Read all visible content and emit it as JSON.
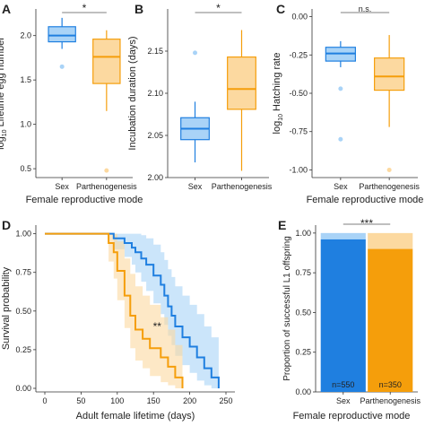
{
  "colors": {
    "sex": "#1f7fe0",
    "sex_fill": "#a9d3f7",
    "parth": "#f59e0b",
    "parth_fill": "#fcd9a0"
  },
  "chart_data": [
    {
      "panel": "A",
      "type": "box",
      "categories": [
        "Sex",
        "Parthenogenesis"
      ],
      "xlabel": "Female reproductive mode",
      "ylabel_prefix": "log",
      "ylabel_sub": "10",
      "ylabel_rest": " Lifetime egg number",
      "ylim": [
        0.4,
        2.3
      ],
      "yticks": [
        0.5,
        1.0,
        1.5,
        2.0
      ],
      "yticklabels": [
        "0.5",
        "1.0",
        "1.5",
        "2.0"
      ],
      "boxes": [
        {
          "min": 1.85,
          "q1": 1.93,
          "median": 2.0,
          "q3": 2.1,
          "max": 2.2,
          "outliers": [
            1.65
          ]
        },
        {
          "min": 1.15,
          "q1": 1.46,
          "median": 1.76,
          "q3": 1.96,
          "max": 2.06,
          "outliers": [
            0.48
          ]
        }
      ],
      "significance": "*"
    },
    {
      "panel": "B",
      "type": "box",
      "categories": [
        "Sex",
        "Parthenogenesis"
      ],
      "xlabel": "",
      "ylabel": "Incubation duration (days)",
      "ylim": [
        2.0,
        2.2
      ],
      "yticks": [
        2.0,
        2.05,
        2.1,
        2.15
      ],
      "yticklabels": [
        "2.00",
        "2.05",
        "2.10",
        "2.15"
      ],
      "boxes": [
        {
          "min": 2.018,
          "q1": 2.045,
          "median": 2.058,
          "q3": 2.071,
          "max": 2.09,
          "outliers": [
            2.148
          ]
        },
        {
          "min": 2.008,
          "q1": 2.081,
          "median": 2.105,
          "q3": 2.143,
          "max": 2.175,
          "outliers": []
        }
      ],
      "significance": "*"
    },
    {
      "panel": "C",
      "type": "box",
      "categories": [
        "Sex",
        "Parthenogenesis"
      ],
      "xlabel": "Female reproductive mode",
      "ylabel_prefix": "log",
      "ylabel_sub": "10",
      "ylabel_rest": " Hatching rate",
      "ylim": [
        -1.05,
        0.05
      ],
      "yticks": [
        0.0,
        -0.25,
        -0.5,
        -0.75,
        -1.0
      ],
      "yticklabels": [
        "0.00",
        "-0.25",
        "-0.50",
        "-0.75",
        "-1.00"
      ],
      "boxes": [
        {
          "min": -0.33,
          "q1": -0.29,
          "median": -0.24,
          "q3": -0.2,
          "max": -0.16,
          "outliers": [
            -0.47,
            -0.8
          ]
        },
        {
          "min": -0.72,
          "q1": -0.48,
          "median": -0.39,
          "q3": -0.27,
          "max": -0.12,
          "outliers": [
            -1.0
          ]
        }
      ],
      "significance": "n.s."
    },
    {
      "panel": "D",
      "type": "line",
      "step": true,
      "xlabel": "Adult female lifetime (days)",
      "ylabel": "Survival probability",
      "xlim": [
        0,
        250
      ],
      "ylim": [
        0,
        1.05
      ],
      "xticks": [
        0,
        50,
        100,
        150,
        200,
        250
      ],
      "xticklabels": [
        "0",
        "50",
        "100",
        "150",
        "200",
        "250"
      ],
      "yticks": [
        0,
        0.25,
        0.5,
        0.75,
        1.0
      ],
      "yticklabels": [
        "0.00",
        "0.25",
        "0.50",
        "0.75",
        "1.00"
      ],
      "series": [
        {
          "key": "sex",
          "x": [
            0,
            95,
            110,
            120,
            125,
            133,
            140,
            150,
            160,
            165,
            170,
            175,
            180,
            190,
            200,
            210,
            220,
            230,
            240
          ],
          "y": [
            1.0,
            0.97,
            0.94,
            0.91,
            0.88,
            0.84,
            0.8,
            0.73,
            0.67,
            0.6,
            0.53,
            0.47,
            0.4,
            0.33,
            0.27,
            0.2,
            0.13,
            0.07,
            0.0
          ],
          "upper": [
            1.0,
            1.0,
            1.0,
            1.0,
            1.0,
            0.99,
            0.97,
            0.93,
            0.88,
            0.83,
            0.77,
            0.72,
            0.66,
            0.6,
            0.54,
            0.48,
            0.4,
            0.33,
            0.25
          ],
          "lower": [
            1.0,
            0.9,
            0.85,
            0.8,
            0.75,
            0.69,
            0.63,
            0.55,
            0.48,
            0.41,
            0.34,
            0.28,
            0.21,
            0.15,
            0.1,
            0.05,
            0.02,
            0.0,
            0.0
          ]
        },
        {
          "key": "parth",
          "x": [
            0,
            88,
            95,
            100,
            110,
            118,
            125,
            135,
            145,
            160,
            170,
            180,
            190
          ],
          "y": [
            1.0,
            0.94,
            0.88,
            0.76,
            0.6,
            0.47,
            0.38,
            0.32,
            0.26,
            0.2,
            0.14,
            0.07,
            0.0
          ],
          "upper": [
            1.0,
            1.0,
            1.0,
            0.95,
            0.84,
            0.74,
            0.66,
            0.6,
            0.54,
            0.46,
            0.38,
            0.28,
            0.22
          ],
          "lower": [
            1.0,
            0.82,
            0.71,
            0.57,
            0.39,
            0.26,
            0.18,
            0.13,
            0.08,
            0.04,
            0.02,
            0.0,
            0.0
          ]
        }
      ],
      "annotation": "**",
      "annotation_x": 155,
      "annotation_y": 0.4
    },
    {
      "panel": "E",
      "type": "bar",
      "stacked": true,
      "categories": [
        "Sex",
        "Parthenogenesis"
      ],
      "xlabel": "Female reproductive mode",
      "ylabel": "Proportion of successful L1 offspring",
      "ylim": [
        0,
        1.05
      ],
      "yticks": [
        0,
        0.25,
        0.5,
        0.75,
        1.0
      ],
      "yticklabels": [
        "0.00",
        "0.25",
        "0.50",
        "0.75",
        "1.00"
      ],
      "values": [
        0.96,
        0.9
      ],
      "totals": [
        1.0,
        1.0
      ],
      "labels": [
        "n=550",
        "n=350"
      ],
      "significance": "***"
    }
  ]
}
